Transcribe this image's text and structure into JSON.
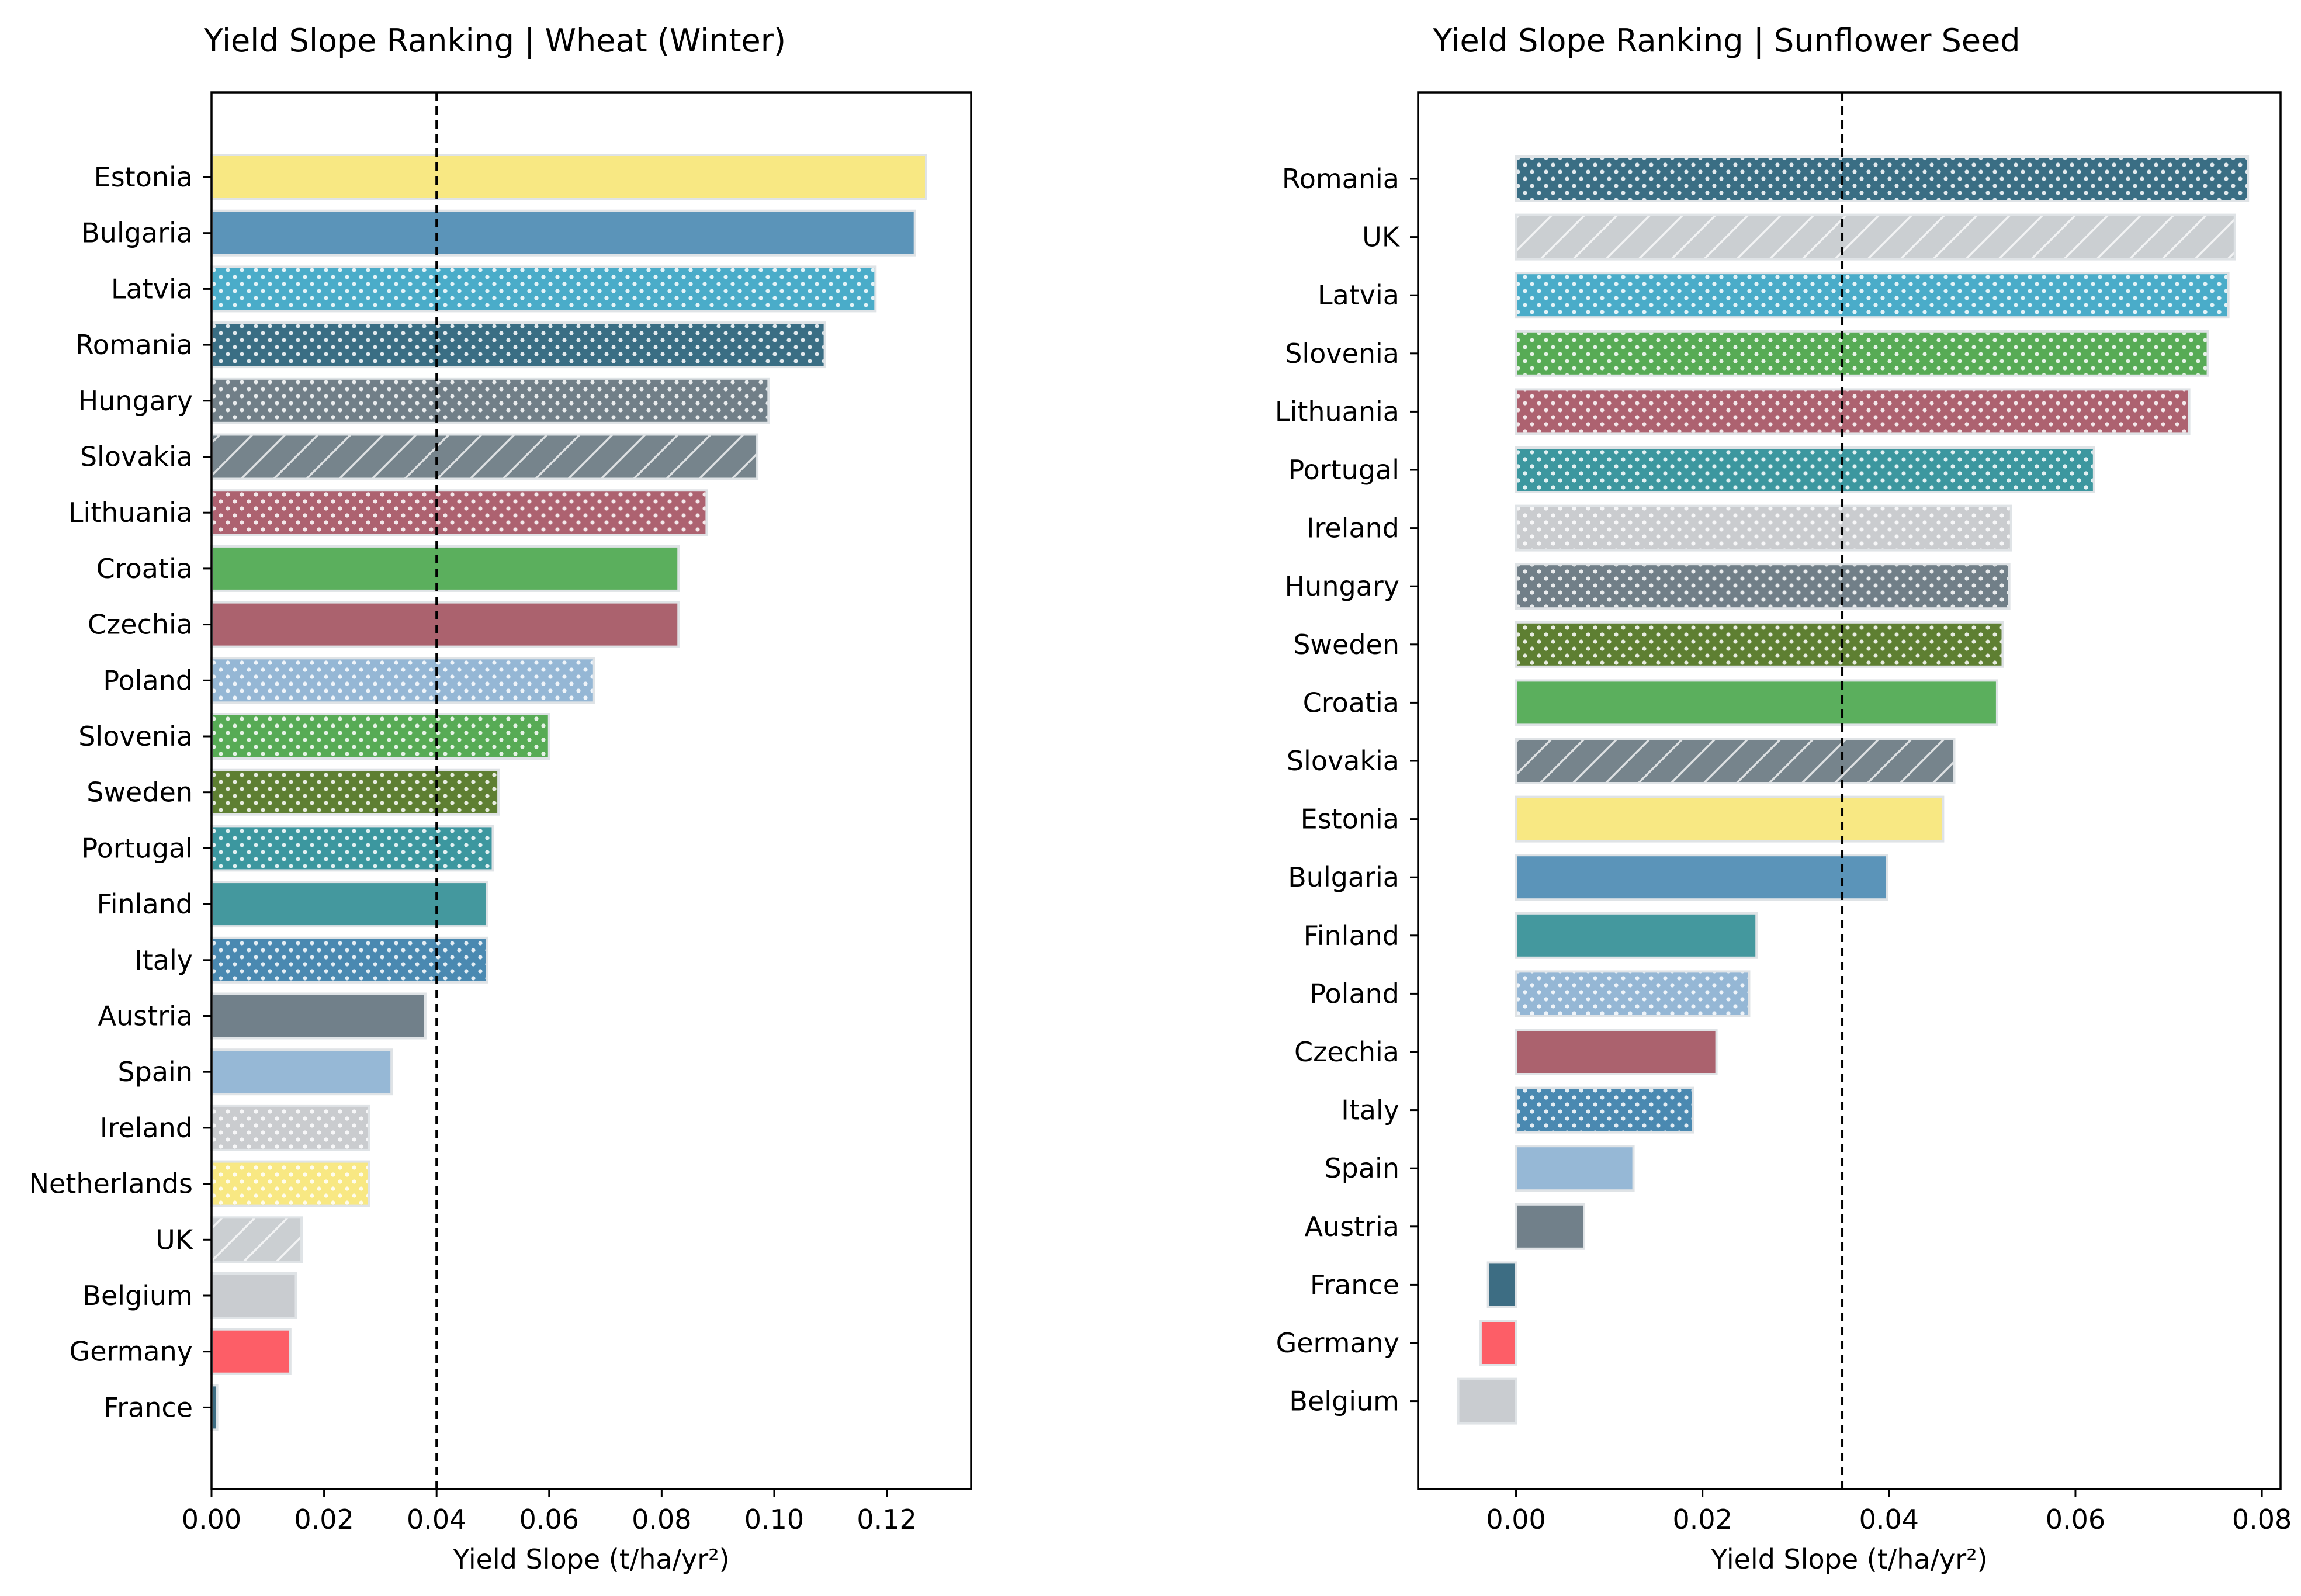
{
  "chart_data": [
    {
      "type": "bar",
      "orientation": "horizontal",
      "title": "Yield Slope Ranking | Wheat (Winter)",
      "xlabel": "Yield Slope (t/ha/yr²)",
      "ylabel": "",
      "xlim": [
        0,
        0.135
      ],
      "xticks": [
        0,
        0.02,
        0.04,
        0.06,
        0.08,
        0.1,
        0.12
      ],
      "xtick_labels": [
        "0.00",
        "0.02",
        "0.04",
        "0.06",
        "0.08",
        "0.10",
        "0.12"
      ],
      "reference_line": 0.04,
      "grid": false,
      "categories": [
        "Estonia",
        "Bulgaria",
        "Latvia",
        "Romania",
        "Hungary",
        "Slovakia",
        "Lithuania",
        "Croatia",
        "Czechia",
        "Poland",
        "Slovenia",
        "Sweden",
        "Portugal",
        "Finland",
        "Italy",
        "Austria",
        "Spain",
        "Ireland",
        "Netherlands",
        "UK",
        "Belgium",
        "Germany",
        "France"
      ],
      "values": [
        0.127,
        0.125,
        0.118,
        0.109,
        0.099,
        0.097,
        0.088,
        0.083,
        0.083,
        0.068,
        0.06,
        0.051,
        0.05,
        0.049,
        0.049,
        0.038,
        0.032,
        0.028,
        0.028,
        0.016,
        0.015,
        0.014,
        0.001
      ],
      "colors": [
        "#f8e883",
        "#5b94b9",
        "#4aacc9",
        "#3a6e84",
        "#717f88",
        "#76848c",
        "#ad6270",
        "#5baf5d",
        "#ab626e",
        "#95b7d5",
        "#57ab55",
        "#5e7f32",
        "#3c979f",
        "#44989e",
        "#4a89b1",
        "#71808a",
        "#96b8d6",
        "#cacccf",
        "#f8e883",
        "#cbcfd2",
        "#c9ccd0",
        "#fd5e67",
        "#3d6d83"
      ],
      "patterns": [
        "none",
        "none",
        "dots",
        "dots",
        "dots",
        "hatch",
        "dots",
        "none",
        "none",
        "dots",
        "dots",
        "dots",
        "dots",
        "none",
        "dots",
        "none",
        "none",
        "dots",
        "dots",
        "hatch",
        "none",
        "none",
        "none"
      ]
    },
    {
      "type": "bar",
      "orientation": "horizontal",
      "title": "Yield Slope Ranking | Sunflower Seed",
      "xlabel": "Yield Slope (t/ha/yr²)",
      "ylabel": "",
      "xlim": [
        -0.0105,
        0.082
      ],
      "xticks": [
        0,
        0.02,
        0.04,
        0.06,
        0.08
      ],
      "xtick_labels": [
        "0.00",
        "0.02",
        "0.04",
        "0.06",
        "0.08"
      ],
      "reference_line": 0.035,
      "grid": false,
      "categories": [
        "Romania",
        "UK",
        "Latvia",
        "Slovenia",
        "Lithuania",
        "Portugal",
        "Ireland",
        "Hungary",
        "Sweden",
        "Croatia",
        "Slovakia",
        "Estonia",
        "Bulgaria",
        "Finland",
        "Poland",
        "Czechia",
        "Italy",
        "Spain",
        "Austria",
        "France",
        "Germany",
        "Belgium"
      ],
      "values": [
        0.0785,
        0.0771,
        0.0764,
        0.0742,
        0.0722,
        0.062,
        0.0531,
        0.0529,
        0.0522,
        0.0516,
        0.047,
        0.0458,
        0.0398,
        0.0258,
        0.025,
        0.0215,
        0.019,
        0.0126,
        0.0073,
        -0.003,
        -0.0038,
        -0.0062
      ],
      "colors": [
        "#3a6e84",
        "#cbcfd2",
        "#4aacc9",
        "#57ab55",
        "#ad6270",
        "#3c979f",
        "#cacccf",
        "#717f88",
        "#5e7f32",
        "#5baf5d",
        "#76848c",
        "#f8e883",
        "#5b94b9",
        "#44989e",
        "#95b7d5",
        "#ab626e",
        "#4a89b1",
        "#96b8d6",
        "#71808a",
        "#3d6d83",
        "#fd5e67",
        "#c9ccd0"
      ],
      "patterns": [
        "dots",
        "hatch",
        "dots",
        "dots",
        "dots",
        "dots",
        "dots",
        "dots",
        "dots",
        "none",
        "hatch",
        "none",
        "none",
        "none",
        "dots",
        "none",
        "dots",
        "none",
        "none",
        "none",
        "none",
        "none"
      ]
    }
  ]
}
